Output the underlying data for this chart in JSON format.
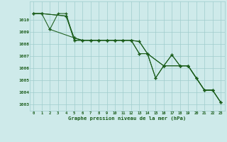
{
  "title": "Graphe pression niveau de la mer (hPa)",
  "background_color": "#ceeaea",
  "grid_color": "#a0cccc",
  "line_color": "#1a5c1a",
  "xlim": [
    -0.5,
    23.5
  ],
  "ylim": [
    1002.5,
    1011.5
  ],
  "yticks": [
    1003,
    1004,
    1005,
    1006,
    1007,
    1008,
    1009,
    1010
  ],
  "xticks": [
    0,
    1,
    2,
    3,
    4,
    5,
    6,
    7,
    8,
    9,
    10,
    11,
    12,
    13,
    14,
    15,
    16,
    17,
    18,
    19,
    20,
    21,
    22,
    23
  ],
  "series1_x": [
    0,
    1,
    2,
    3,
    4,
    5,
    6,
    7,
    8,
    9,
    10,
    11,
    12,
    13,
    14,
    15,
    16,
    17,
    18,
    19,
    20,
    21,
    22,
    23
  ],
  "series1_y": [
    1010.5,
    1010.5,
    1009.2,
    1010.5,
    1010.5,
    1008.3,
    1008.3,
    1008.3,
    1008.3,
    1008.3,
    1008.3,
    1008.3,
    1008.3,
    1008.2,
    1007.2,
    1005.2,
    1006.2,
    1007.1,
    1006.2,
    1006.2,
    1005.2,
    1004.2,
    1004.2,
    1003.2
  ],
  "series2_x": [
    0,
    1,
    4,
    5,
    6,
    7,
    8,
    9,
    10,
    11,
    12,
    13,
    14,
    16,
    18,
    19,
    21,
    22,
    23
  ],
  "series2_y": [
    1010.5,
    1010.5,
    1010.3,
    1008.5,
    1008.3,
    1008.3,
    1008.3,
    1008.3,
    1008.3,
    1008.3,
    1008.3,
    1007.2,
    1007.2,
    1006.2,
    1006.2,
    1006.2,
    1004.2,
    1004.2,
    1003.2
  ],
  "series3_x": [
    0,
    1,
    4,
    5,
    6,
    7,
    8,
    9,
    10,
    11,
    12,
    13,
    14,
    16,
    18,
    19,
    20,
    21,
    22
  ],
  "series3_y": [
    1010.5,
    1010.5,
    1010.3,
    1008.3,
    1008.3,
    1008.3,
    1008.3,
    1008.3,
    1008.3,
    1008.3,
    1008.3,
    1008.2,
    1007.2,
    1006.2,
    1006.2,
    1006.2,
    1005.2,
    1004.2,
    1004.2
  ],
  "series4_x": [
    2,
    5,
    6,
    7,
    8,
    9,
    10,
    11,
    12,
    13,
    14,
    15,
    16,
    17,
    18,
    19,
    20,
    21,
    22,
    23
  ],
  "series4_y": [
    1009.2,
    1008.5,
    1008.3,
    1008.3,
    1008.3,
    1008.3,
    1008.3,
    1008.3,
    1008.3,
    1007.2,
    1007.2,
    1005.2,
    1006.2,
    1007.1,
    1006.2,
    1006.2,
    1005.2,
    1004.2,
    1004.2,
    1003.2
  ]
}
